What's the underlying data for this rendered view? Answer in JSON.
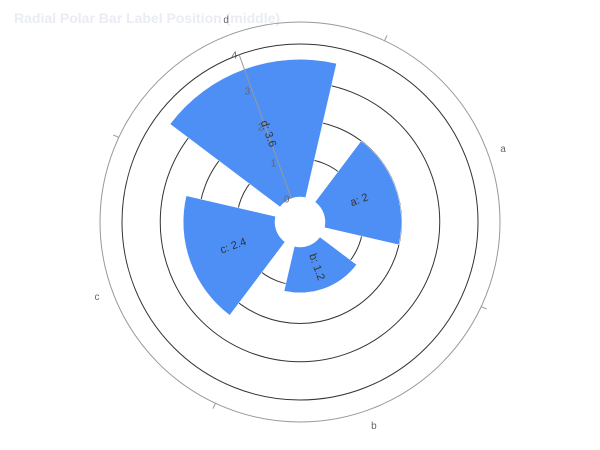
{
  "chart_data": {
    "type": "bar",
    "coordinate_system": "polar",
    "title": "Radial Polar Bar Label Position (middle)",
    "categories": [
      "a",
      "b",
      "c",
      "d"
    ],
    "values": [
      2,
      1.2,
      2.4,
      3.6
    ],
    "data_labels": [
      "a: 2",
      "b: 1.2",
      "c: 2.4",
      "d: 3.6"
    ],
    "label_position": "middle",
    "radius_axis": {
      "ticks": [
        0,
        1,
        2,
        3,
        4
      ],
      "range": [
        0,
        4
      ]
    },
    "colors": {
      "bar": "#4d8ff5",
      "axis": "#999999",
      "grid": "#333333",
      "title": "#e9ecf3",
      "label": "#333333",
      "tick": "#666666"
    }
  }
}
